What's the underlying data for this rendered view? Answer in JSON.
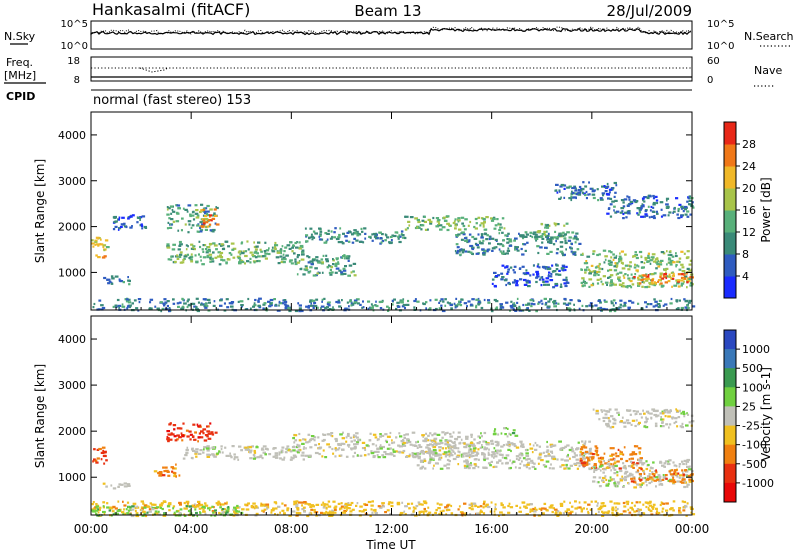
{
  "header": {
    "station": "Hankasalmi (fitACF)",
    "beam": "Beam 13",
    "date": "28/Jul/2009"
  },
  "strips": {
    "nsky_label": "N.Sky",
    "nsky_ticks": [
      "10^5",
      "10^0"
    ],
    "nsearch_label": "N.Search",
    "nsearch_ticks": [
      "10^5",
      "10^0"
    ],
    "freq_label_1": "Freq.",
    "freq_label_2": "[MHz]",
    "freq_ticks": [
      "18",
      "8"
    ],
    "nave_label": "Nave",
    "nave_ticks": [
      "60",
      "0"
    ],
    "cpid_label": "CPID",
    "cpid_value": "normal (fast stereo) 153"
  },
  "chart_data": [
    {
      "type": "heatmap",
      "panel": "power",
      "ylabel": "Slant Range [km]",
      "ylim": [
        180,
        4500
      ],
      "yticks": [
        1000,
        2000,
        3000,
        4000
      ],
      "xlim": [
        0,
        24
      ],
      "xticks": [
        "00:00",
        "04:00",
        "08:00",
        "12:00",
        "16:00",
        "20:00",
        "00:00"
      ],
      "xlabel": "",
      "colorbar": {
        "label": "Power [dB]",
        "range": [
          0,
          32
        ],
        "ticks": [
          "4",
          "8",
          "12",
          "16",
          "20",
          "24",
          "28"
        ],
        "colors": [
          "#1a2cff",
          "#2f5cc0",
          "#3a8a78",
          "#58b07a",
          "#a8c44a",
          "#f0b828",
          "#f07818",
          "#e82818"
        ]
      },
      "regions": [
        {
          "t0": 0.0,
          "t1": 0.6,
          "r0": 1300,
          "r1": 1800,
          "v": 20
        },
        {
          "t0": 0.4,
          "t1": 1.5,
          "r0": 750,
          "r1": 950,
          "v": 10
        },
        {
          "t0": 0.8,
          "t1": 2.2,
          "r0": 1950,
          "r1": 2300,
          "v": 6
        },
        {
          "t0": 3.0,
          "t1": 5.0,
          "r0": 1900,
          "r1": 2500,
          "v": 12
        },
        {
          "t0": 4.3,
          "t1": 5.0,
          "r0": 2000,
          "r1": 2400,
          "v": 24
        },
        {
          "t0": 3.0,
          "t1": 8.5,
          "r0": 1200,
          "r1": 1700,
          "v": 14
        },
        {
          "t0": 8.0,
          "t1": 10.5,
          "r0": 950,
          "r1": 1400,
          "v": 12
        },
        {
          "t0": 8.5,
          "t1": 12.5,
          "r0": 1650,
          "r1": 2000,
          "v": 10
        },
        {
          "t0": 12.5,
          "t1": 16.5,
          "r0": 1950,
          "r1": 2250,
          "v": 14
        },
        {
          "t0": 14.5,
          "t1": 19.5,
          "r0": 1400,
          "r1": 1900,
          "v": 10
        },
        {
          "t0": 16.0,
          "t1": 19.0,
          "r0": 700,
          "r1": 1200,
          "v": 6
        },
        {
          "t0": 17.5,
          "t1": 19.0,
          "r0": 1750,
          "r1": 2100,
          "v": 14
        },
        {
          "t0": 19.5,
          "t1": 24.0,
          "r0": 700,
          "r1": 1500,
          "v": 16
        },
        {
          "t0": 21.5,
          "t1": 24.0,
          "r0": 780,
          "r1": 1000,
          "v": 26
        },
        {
          "t0": 20.5,
          "t1": 24.0,
          "r0": 2200,
          "r1": 2700,
          "v": 8
        },
        {
          "t0": 18.5,
          "t1": 21.0,
          "r0": 2600,
          "r1": 3000,
          "v": 8
        },
        {
          "t0": 0.0,
          "t1": 24.0,
          "r0": 180,
          "r1": 450,
          "v": 9
        }
      ]
    },
    {
      "type": "heatmap",
      "panel": "velocity",
      "ylabel": "Slant Range [km]",
      "ylim": [
        180,
        4500
      ],
      "yticks": [
        1000,
        2000,
        3000,
        4000
      ],
      "xlim": [
        0,
        24
      ],
      "xticks": [
        "00:00",
        "04:00",
        "08:00",
        "12:00",
        "16:00",
        "20:00",
        "00:00"
      ],
      "xlabel": "Time UT",
      "colorbar": {
        "label": "Velocity [m s-1]",
        "ticks": [
          "1000",
          "500",
          "100",
          "25",
          "-25",
          "-100",
          "-500",
          "-1000"
        ],
        "colors": [
          "#2a48c0",
          "#3a78b8",
          "#3a9a50",
          "#70d040",
          "#c0c0b8",
          "#f0c020",
          "#f08010",
          "#e83010",
          "#e80808"
        ]
      },
      "regions": [
        {
          "t0": 0.0,
          "t1": 0.6,
          "r0": 1300,
          "r1": 1700,
          "class": 7
        },
        {
          "t0": 0.4,
          "t1": 1.5,
          "r0": 780,
          "r1": 900,
          "class": 4
        },
        {
          "t0": 3.0,
          "t1": 5.0,
          "r0": 1800,
          "r1": 2200,
          "class": 7
        },
        {
          "t0": 2.5,
          "t1": 3.5,
          "r0": 1000,
          "r1": 1300,
          "class": 6
        },
        {
          "t0": 3.5,
          "t1": 8.5,
          "r0": 1400,
          "r1": 1700,
          "class": 4
        },
        {
          "t0": 8.0,
          "t1": 16.0,
          "r0": 1450,
          "r1": 2000,
          "class": 4
        },
        {
          "t0": 13.0,
          "t1": 20.0,
          "r0": 1200,
          "r1": 1800,
          "class": 4
        },
        {
          "t0": 16.0,
          "t1": 17.0,
          "r0": 1900,
          "r1": 2100,
          "class": 3
        },
        {
          "t0": 19.5,
          "t1": 22.0,
          "r0": 1200,
          "r1": 1700,
          "class": 6
        },
        {
          "t0": 20.0,
          "t1": 24.0,
          "r0": 800,
          "r1": 1400,
          "class": 4
        },
        {
          "t0": 21.5,
          "t1": 24.0,
          "r0": 900,
          "r1": 1200,
          "class": 6
        },
        {
          "t0": 0.0,
          "t1": 24.0,
          "r0": 180,
          "r1": 500,
          "class": 5
        },
        {
          "t0": 0.0,
          "t1": 6.0,
          "r0": 180,
          "r1": 400,
          "class": 3
        },
        {
          "t0": 20.0,
          "t1": 24.0,
          "r0": 2100,
          "r1": 2500,
          "class": 4
        }
      ]
    }
  ]
}
